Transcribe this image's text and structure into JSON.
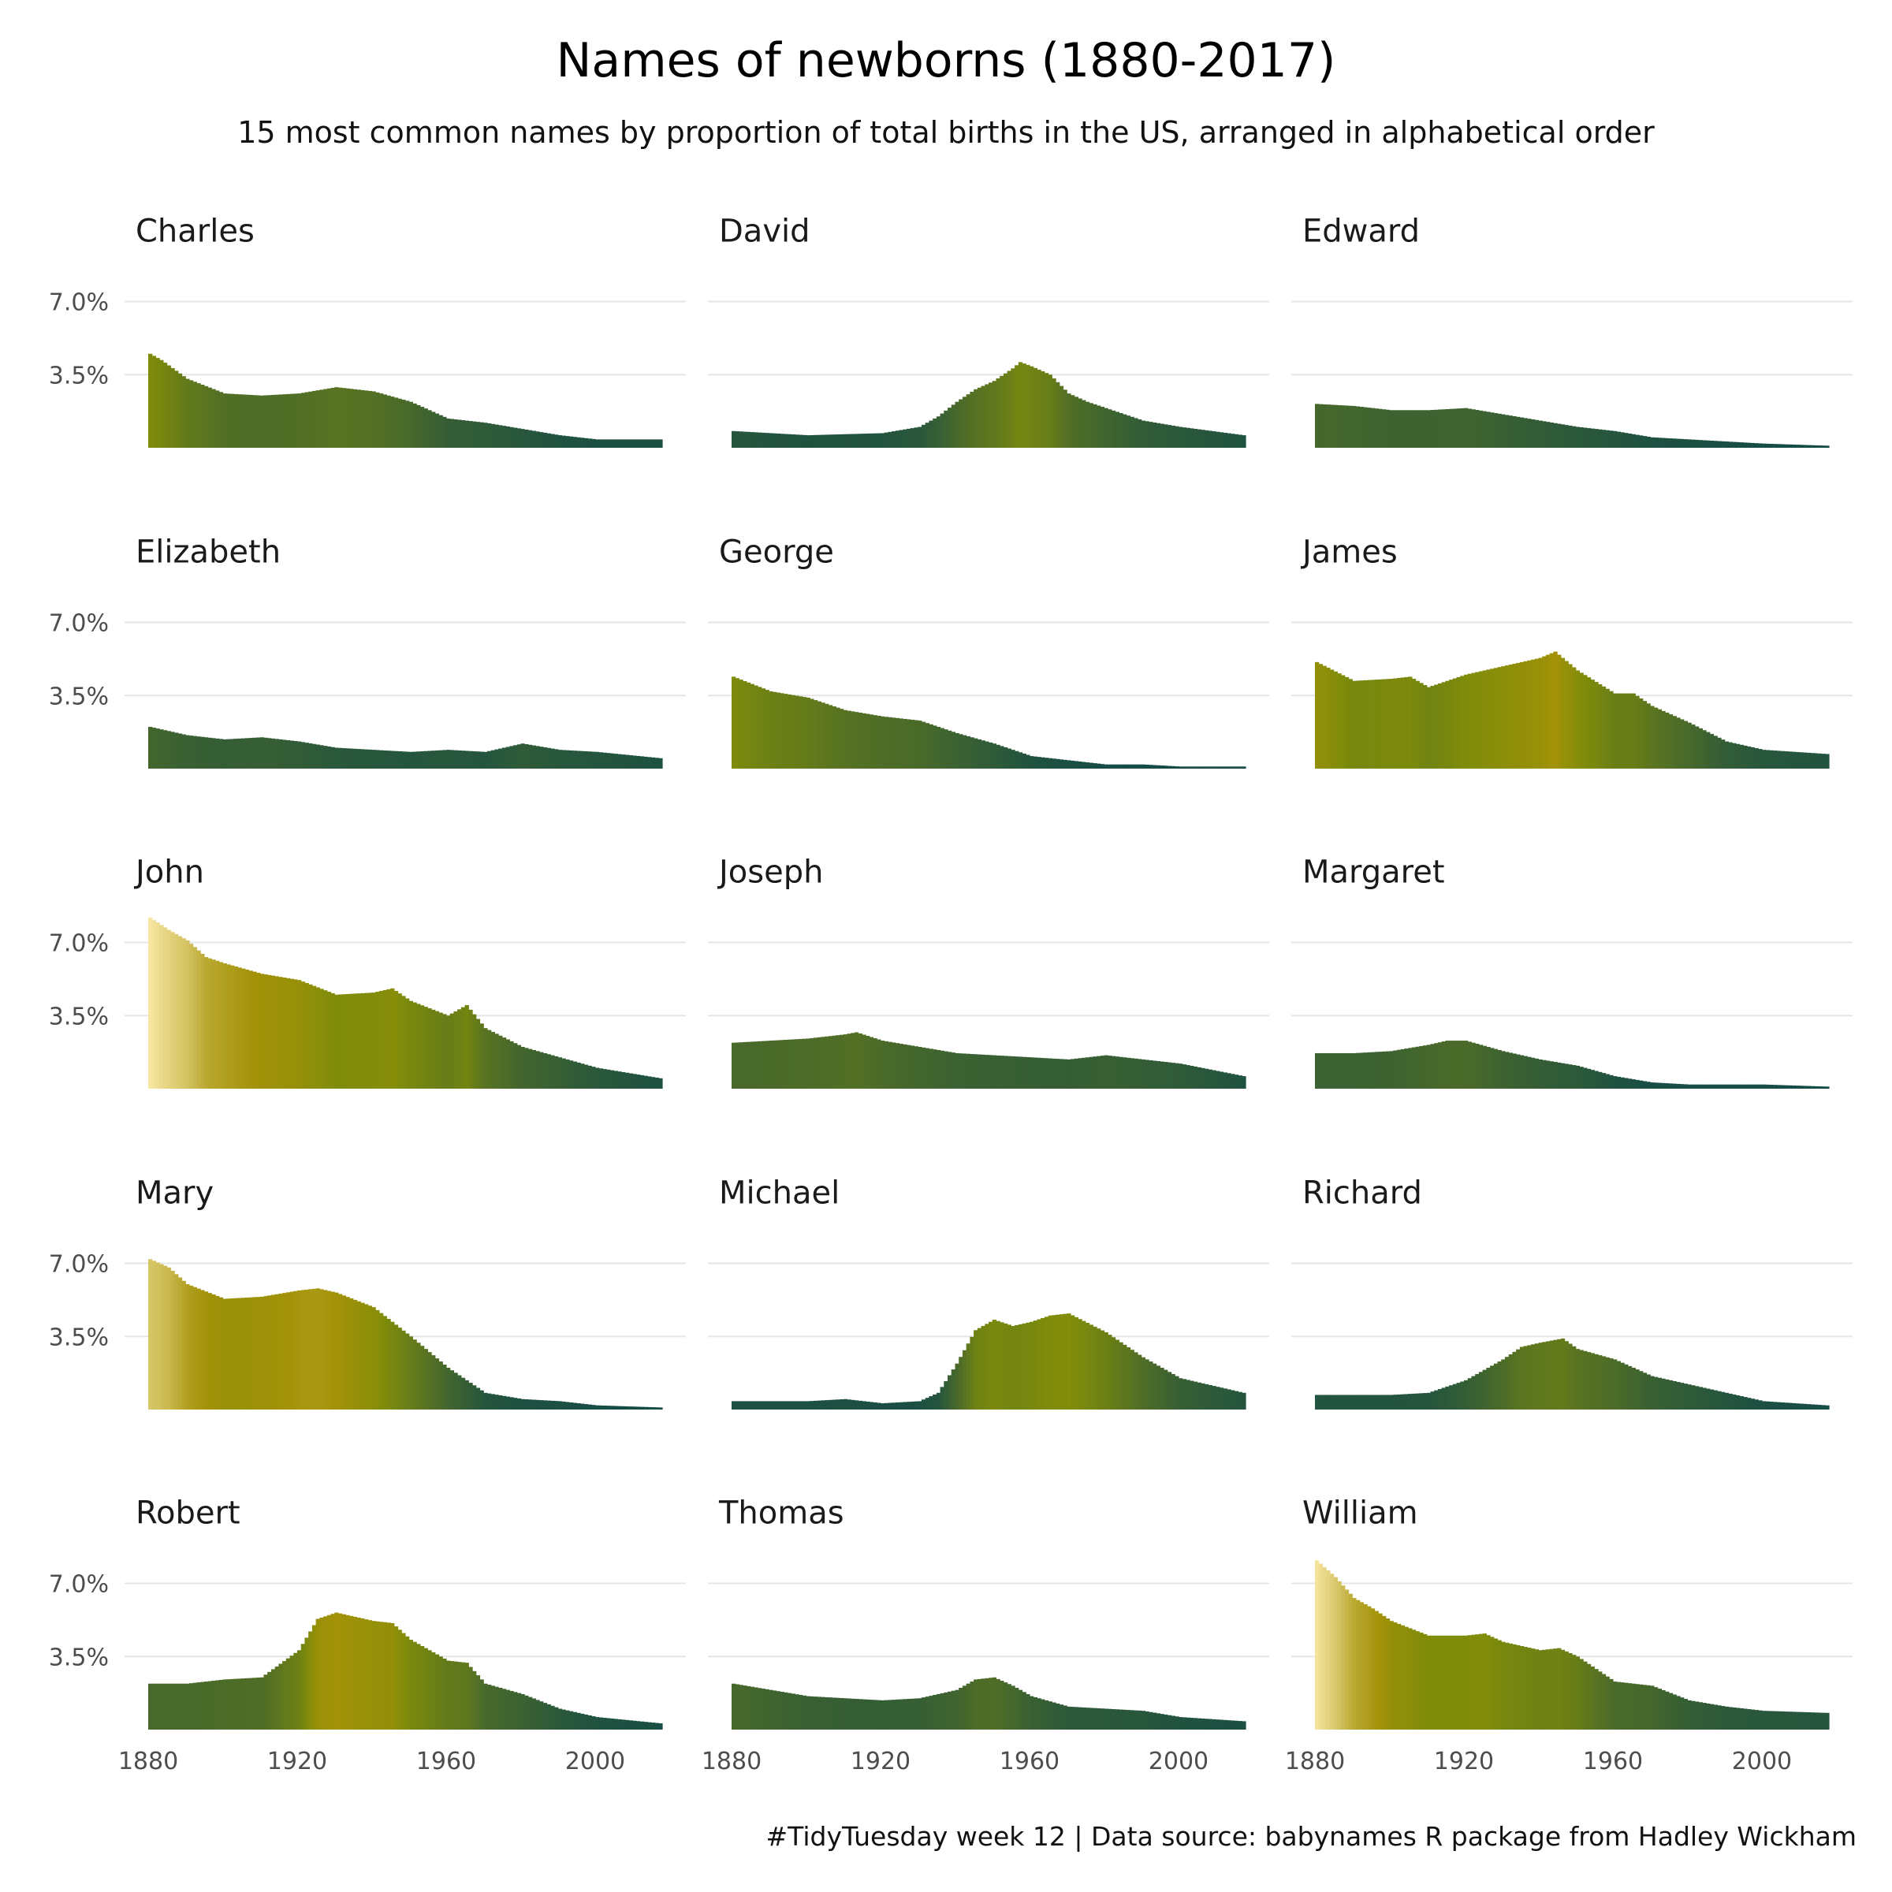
{
  "title": "Names of newborns (1880-2017)",
  "subtitle": "15 most common names by proportion of total births in the US, arranged in alphabetical order",
  "caption": "#TidyTuesday week 12 | Data source: babynames R package from Hadley Wickham",
  "colors": {
    "low": "#124a48",
    "mid_low": "#4a6a2a",
    "mid": "#7f8c0a",
    "mid_high": "#a39208",
    "high": "#f7e6a1",
    "grid": "#e6e6e6"
  },
  "chart_data": {
    "type": "bar",
    "facet_layout": "5 rows x 3 columns",
    "x_unit": "year",
    "y_unit": "proportion of total births (%)",
    "xlim": [
      1880,
      2017
    ],
    "ylim": [
      0,
      8.5
    ],
    "x_ticks": [
      1880,
      1920,
      1960,
      2000
    ],
    "x_tick_labels": [
      "1880",
      "1920",
      "1960",
      "2000"
    ],
    "y_ticks": [
      3.5,
      7.0
    ],
    "y_tick_labels": [
      "3.5%",
      "7.0%"
    ],
    "color_encoding": "fill gradient by proportion (dark teal = low, olive = mid, pale yellow = high)",
    "grid": "horizontal major",
    "series": [
      {
        "name": "Charles",
        "years": [
          1880,
          1883,
          1890,
          1900,
          1910,
          1920,
          1930,
          1940,
          1950,
          1960,
          1970,
          1980,
          1990,
          2000,
          2017
        ],
        "values": [
          4.5,
          4.2,
          3.3,
          2.6,
          2.5,
          2.6,
          2.9,
          2.7,
          2.2,
          1.4,
          1.2,
          0.9,
          0.6,
          0.4,
          0.4
        ]
      },
      {
        "name": "David",
        "years": [
          1880,
          1900,
          1920,
          1930,
          1935,
          1940,
          1945,
          1950,
          1955,
          1957,
          1960,
          1965,
          1970,
          1975,
          1980,
          1990,
          2000,
          2017
        ],
        "values": [
          0.8,
          0.6,
          0.7,
          1.0,
          1.5,
          2.2,
          2.8,
          3.2,
          3.8,
          4.1,
          3.9,
          3.5,
          2.6,
          2.2,
          1.9,
          1.3,
          1.0,
          0.6
        ]
      },
      {
        "name": "Edward",
        "years": [
          1880,
          1890,
          1900,
          1910,
          1920,
          1930,
          1940,
          1950,
          1960,
          1970,
          1980,
          1990,
          2000,
          2017
        ],
        "values": [
          2.1,
          2.0,
          1.8,
          1.8,
          1.9,
          1.6,
          1.3,
          1.0,
          0.8,
          0.5,
          0.4,
          0.3,
          0.2,
          0.1
        ]
      },
      {
        "name": "Elizabeth",
        "years": [
          1880,
          1890,
          1900,
          1910,
          1920,
          1930,
          1940,
          1950,
          1960,
          1970,
          1980,
          1990,
          2000,
          2017
        ],
        "values": [
          2.0,
          1.6,
          1.4,
          1.5,
          1.3,
          1.0,
          0.9,
          0.8,
          0.9,
          0.8,
          1.2,
          0.9,
          0.8,
          0.5
        ]
      },
      {
        "name": "George",
        "years": [
          1880,
          1890,
          1900,
          1910,
          1920,
          1930,
          1940,
          1950,
          1960,
          1970,
          1980,
          1990,
          2000,
          2017
        ],
        "values": [
          4.4,
          3.7,
          3.4,
          2.8,
          2.5,
          2.3,
          1.7,
          1.2,
          0.6,
          0.4,
          0.2,
          0.2,
          0.1,
          0.1
        ]
      },
      {
        "name": "James",
        "years": [
          1880,
          1890,
          1900,
          1905,
          1910,
          1920,
          1930,
          1940,
          1944,
          1950,
          1960,
          1965,
          1970,
          1980,
          1990,
          2000,
          2017
        ],
        "values": [
          5.1,
          4.2,
          4.3,
          4.4,
          3.9,
          4.5,
          4.9,
          5.3,
          5.6,
          4.7,
          3.6,
          3.6,
          3.0,
          2.2,
          1.3,
          0.9,
          0.7
        ]
      },
      {
        "name": "John",
        "years": [
          1880,
          1885,
          1890,
          1895,
          1900,
          1910,
          1920,
          1930,
          1940,
          1945,
          1950,
          1960,
          1965,
          1970,
          1980,
          1990,
          2000,
          2017
        ],
        "values": [
          8.2,
          7.6,
          7.1,
          6.3,
          6.0,
          5.5,
          5.2,
          4.5,
          4.6,
          4.8,
          4.2,
          3.5,
          4.0,
          2.9,
          2.0,
          1.5,
          1.0,
          0.5
        ]
      },
      {
        "name": "Joseph",
        "years": [
          1880,
          1890,
          1900,
          1910,
          1913,
          1920,
          1930,
          1940,
          1950,
          1960,
          1970,
          1980,
          1990,
          2000,
          2017
        ],
        "values": [
          2.2,
          2.3,
          2.4,
          2.6,
          2.7,
          2.3,
          2.0,
          1.7,
          1.6,
          1.5,
          1.4,
          1.6,
          1.4,
          1.2,
          0.6
        ]
      },
      {
        "name": "Margaret",
        "years": [
          1880,
          1890,
          1900,
          1910,
          1915,
          1920,
          1930,
          1940,
          1950,
          1960,
          1970,
          1980,
          1990,
          2000,
          2017
        ],
        "values": [
          1.7,
          1.7,
          1.8,
          2.1,
          2.3,
          2.3,
          1.8,
          1.4,
          1.1,
          0.6,
          0.3,
          0.2,
          0.2,
          0.2,
          0.1
        ]
      },
      {
        "name": "Mary",
        "years": [
          1880,
          1885,
          1890,
          1900,
          1910,
          1920,
          1925,
          1930,
          1940,
          1950,
          1960,
          1970,
          1980,
          1990,
          2000,
          2017
        ],
        "values": [
          7.2,
          6.8,
          6.0,
          5.3,
          5.4,
          5.7,
          5.8,
          5.6,
          4.9,
          3.5,
          2.0,
          0.8,
          0.5,
          0.4,
          0.2,
          0.1
        ]
      },
      {
        "name": "Michael",
        "years": [
          1880,
          1900,
          1910,
          1920,
          1930,
          1935,
          1940,
          1945,
          1950,
          1955,
          1960,
          1965,
          1970,
          1980,
          1990,
          2000,
          2017
        ],
        "values": [
          0.4,
          0.4,
          0.5,
          0.3,
          0.4,
          0.8,
          2.2,
          3.8,
          4.3,
          4.0,
          4.2,
          4.5,
          4.6,
          3.7,
          2.5,
          1.5,
          0.8
        ]
      },
      {
        "name": "Richard",
        "years": [
          1880,
          1900,
          1910,
          1920,
          1930,
          1935,
          1940,
          1946,
          1950,
          1960,
          1970,
          1980,
          1990,
          2000,
          2017
        ],
        "values": [
          0.7,
          0.7,
          0.8,
          1.4,
          2.4,
          3.0,
          3.2,
          3.4,
          2.9,
          2.4,
          1.6,
          1.2,
          0.8,
          0.4,
          0.2
        ]
      },
      {
        "name": "Robert",
        "years": [
          1880,
          1890,
          1900,
          1910,
          1920,
          1925,
          1930,
          1935,
          1940,
          1945,
          1950,
          1960,
          1965,
          1970,
          1980,
          1990,
          2000,
          2017
        ],
        "values": [
          2.2,
          2.2,
          2.4,
          2.5,
          3.8,
          5.3,
          5.6,
          5.4,
          5.2,
          5.1,
          4.3,
          3.3,
          3.2,
          2.2,
          1.7,
          1.0,
          0.6,
          0.3
        ]
      },
      {
        "name": "Thomas",
        "years": [
          1880,
          1890,
          1900,
          1910,
          1920,
          1930,
          1940,
          1945,
          1950,
          1955,
          1960,
          1970,
          1980,
          1990,
          2000,
          2017
        ],
        "values": [
          2.2,
          1.9,
          1.6,
          1.5,
          1.4,
          1.5,
          1.9,
          2.4,
          2.5,
          2.1,
          1.6,
          1.1,
          1.0,
          0.9,
          0.6,
          0.4
        ]
      },
      {
        "name": "William",
        "years": [
          1880,
          1885,
          1890,
          1895,
          1900,
          1910,
          1920,
          1925,
          1930,
          1940,
          1945,
          1950,
          1960,
          1970,
          1980,
          1990,
          2000,
          2017
        ],
        "values": [
          8.1,
          7.3,
          6.3,
          5.8,
          5.2,
          4.5,
          4.5,
          4.6,
          4.2,
          3.8,
          3.9,
          3.5,
          2.3,
          2.1,
          1.4,
          1.1,
          0.9,
          0.8
        ]
      }
    ]
  }
}
